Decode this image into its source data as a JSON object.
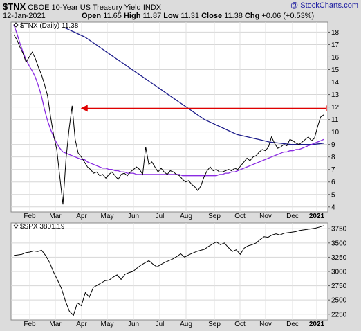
{
  "header": {
    "symbol": "$TNX",
    "name": "CBOE 10-Year US Treasury Yield",
    "exchange": "INDX",
    "watermark": "@ StockCharts.com",
    "date": "12-Jan-2021",
    "open_label": "Open",
    "open": "11.65",
    "high_label": "High",
    "high": "11.87",
    "low_label": "Low",
    "low": "11.31",
    "close_label": "Close",
    "close": "11.38",
    "chg_label": "Chg",
    "chg": "+0.06 (+0.53%)"
  },
  "chart_data": [
    {
      "type": "line",
      "legend": "$TNX (Daily) 11.38",
      "x_labels": [
        "Feb",
        "Mar",
        "Apr",
        "May",
        "Jun",
        "Jul",
        "Aug",
        "Sep",
        "Oct",
        "Nov",
        "Dec",
        "2021"
      ],
      "yticks": [
        4,
        5,
        6,
        7,
        8,
        9,
        10,
        11,
        12,
        13,
        14,
        15,
        16,
        17,
        18
      ],
      "ylim": [
        3.6,
        18.8
      ],
      "colors": {
        "price": "#000000",
        "ma_long": "#1e1e8c",
        "ma_short": "#8a2be2",
        "annotation": "#e00000"
      },
      "price": [
        17.8,
        17.4,
        16.8,
        16.3,
        15.6,
        16.0,
        16.4,
        15.9,
        15.2,
        14.6,
        13.8,
        12.9,
        11.2,
        9.7,
        8.6,
        6.4,
        4.2,
        7.8,
        10.2,
        12.1,
        9.4,
        8.3,
        8.0,
        7.6,
        7.2,
        7.0,
        6.7,
        6.8,
        6.5,
        6.6,
        6.3,
        6.6,
        6.8,
        6.5,
        6.2,
        6.6,
        6.7,
        6.5,
        6.8,
        7.0,
        7.2,
        7.0,
        6.6,
        8.8,
        7.4,
        7.6,
        7.2,
        6.8,
        7.1,
        6.8,
        6.6,
        6.9,
        6.8,
        6.6,
        6.5,
        6.2,
        6.0,
        6.1,
        5.8,
        5.6,
        5.3,
        5.7,
        6.4,
        6.9,
        7.2,
        6.9,
        7.0,
        6.8,
        6.8,
        6.9,
        7.0,
        6.9,
        7.1,
        7.0,
        7.3,
        7.6,
        7.9,
        7.7,
        8.0,
        8.1,
        8.4,
        8.6,
        8.5,
        8.8,
        9.6,
        9.1,
        8.7,
        8.8,
        9.0,
        8.9,
        9.4,
        9.3,
        9.1,
        9.0,
        9.2,
        9.4,
        9.6,
        9.3,
        9.5,
        10.4,
        11.2,
        11.38
      ],
      "ma_short": [
        18.6,
        17.9,
        17.1,
        16.4,
        15.8,
        15.3,
        14.9,
        14.4,
        13.7,
        12.9,
        11.8,
        10.9,
        10.2,
        9.6,
        9.1,
        8.7,
        8.4,
        8.3,
        8.2,
        8.1,
        8.0,
        7.9,
        7.8,
        7.8,
        7.6,
        7.5,
        7.4,
        7.3,
        7.2,
        7.1,
        7.1,
        7.0,
        7.0,
        6.9,
        6.9,
        6.8,
        6.8,
        6.7,
        6.7,
        6.7,
        6.6,
        6.6,
        6.6,
        6.6,
        6.6,
        6.6,
        6.6,
        6.6,
        6.6,
        6.6,
        6.6,
        6.6,
        6.6,
        6.6,
        6.6,
        6.5,
        6.5,
        6.5,
        6.5,
        6.5,
        6.5,
        6.5,
        6.5,
        6.5,
        6.5,
        6.5,
        6.5,
        6.6,
        6.6,
        6.7,
        6.7,
        6.8,
        6.8,
        6.9,
        7.0,
        7.1,
        7.2,
        7.3,
        7.4,
        7.5,
        7.6,
        7.7,
        7.8,
        7.9,
        8.0,
        8.1,
        8.2,
        8.3,
        8.4,
        8.4,
        8.5,
        8.5,
        8.6,
        8.6,
        8.7,
        8.8,
        8.9,
        9.0,
        9.1,
        9.2,
        9.3,
        9.4
      ],
      "ma_long": [
        18.4,
        18.2,
        18.0,
        17.8,
        17.6,
        17.3,
        17.0,
        16.7,
        16.4,
        16.1,
        15.8,
        15.5,
        15.2,
        14.9,
        14.6,
        14.3,
        14.0,
        13.7,
        13.4,
        13.1,
        12.8,
        12.5,
        12.2,
        11.9,
        11.6,
        11.3,
        11.0,
        10.8,
        10.6,
        10.4,
        10.2,
        10.0,
        9.8,
        9.7,
        9.6,
        9.5,
        9.4,
        9.3,
        9.2,
        9.15,
        9.1,
        9.05,
        9.0,
        9.0,
        9.0,
        9.0,
        9.0,
        9.05,
        9.1
      ],
      "ma_long_start": 0.16,
      "annotation": {
        "type": "hline",
        "y": 11.9,
        "x_start": 0.22,
        "x_end": 1.0
      }
    },
    {
      "type": "line",
      "legend": "$SPX 3801.19",
      "x_labels": [
        "Feb",
        "Mar",
        "Apr",
        "May",
        "Jun",
        "Jul",
        "Aug",
        "Sep",
        "Oct",
        "Nov",
        "Dec",
        "2021"
      ],
      "yticks": [
        2250,
        2500,
        2750,
        3000,
        3250,
        3500,
        3750
      ],
      "ylim": [
        2150,
        3850
      ],
      "price": [
        3280,
        3290,
        3300,
        3330,
        3340,
        3360,
        3350,
        3370,
        3280,
        3160,
        2990,
        2850,
        2700,
        2480,
        2300,
        2230,
        2450,
        2400,
        2630,
        2550,
        2720,
        2760,
        2800,
        2840,
        2850,
        2900,
        2940,
        2860,
        2950,
        2980,
        3000,
        3060,
        3110,
        3150,
        3190,
        3130,
        3080,
        3120,
        3160,
        3190,
        3220,
        3260,
        3310,
        3250,
        3290,
        3320,
        3350,
        3370,
        3390,
        3440,
        3480,
        3520,
        3470,
        3500,
        3420,
        3350,
        3380,
        3300,
        3410,
        3450,
        3470,
        3500,
        3560,
        3610,
        3600,
        3640,
        3660,
        3640,
        3670,
        3680,
        3690,
        3700,
        3720,
        3730,
        3740,
        3750,
        3760,
        3780,
        3801
      ]
    }
  ]
}
